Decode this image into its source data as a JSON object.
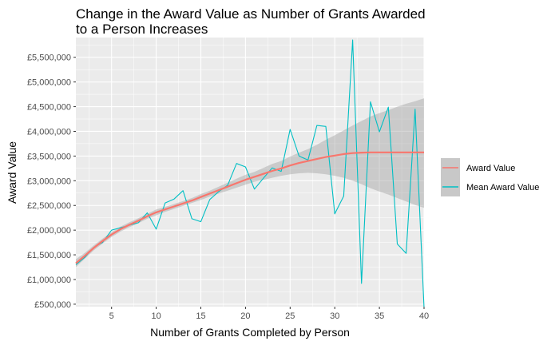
{
  "chart_data": {
    "type": "line",
    "title": "Change in the Award Value as Number of Grants Awarded to a Person Increases",
    "xlabel": "Number of Grants Completed by Person",
    "ylabel": "Award Value",
    "xlim": [
      1,
      40
    ],
    "ylim": [
      450000,
      5900000
    ],
    "x_ticks": [
      5,
      10,
      15,
      20,
      25,
      30,
      35,
      40
    ],
    "y_ticks": [
      500000,
      1000000,
      1500000,
      2000000,
      2500000,
      3000000,
      3500000,
      4000000,
      4500000,
      5000000,
      5500000
    ],
    "y_tick_labels": [
      "£500,000",
      "£1,000,000",
      "£1,500,000",
      "£2,000,000",
      "£2,500,000",
      "£3,000,000",
      "£3,500,000",
      "£4,000,000",
      "£4,500,000",
      "£5,000,000",
      "£5,500,000"
    ],
    "grid": true,
    "legend_position": "right",
    "colors": {
      "panel": "#ebebeb",
      "grid": "#ffffff",
      "band": "#c8c8c8",
      "smooth": "#f8766d",
      "mean": "#00bfc4"
    },
    "series": [
      {
        "name": "Mean Award Value",
        "x": [
          1,
          2,
          3,
          4,
          5,
          6,
          7,
          8,
          9,
          10,
          11,
          12,
          13,
          14,
          15,
          16,
          17,
          18,
          19,
          20,
          21,
          22,
          23,
          24,
          25,
          26,
          27,
          28,
          29,
          30,
          31,
          32,
          33,
          34,
          35,
          36,
          37,
          38,
          39,
          40
        ],
        "values": [
          1300000,
          1450000,
          1650000,
          1750000,
          2000000,
          2050000,
          2100000,
          2150000,
          2350000,
          2020000,
          2550000,
          2630000,
          2800000,
          2230000,
          2170000,
          2620000,
          2780000,
          2910000,
          3350000,
          3280000,
          2830000,
          3050000,
          3260000,
          3190000,
          4040000,
          3500000,
          3420000,
          4120000,
          4100000,
          2330000,
          2690000,
          5850000,
          920000,
          4600000,
          3990000,
          4490000,
          1720000,
          1530000,
          4450000,
          430000
        ]
      },
      {
        "name": "Award Value",
        "x": [
          1,
          2,
          3,
          4,
          5,
          6,
          7,
          8,
          9,
          10,
          11,
          12,
          13,
          14,
          15,
          16,
          17,
          18,
          19,
          20,
          21,
          22,
          23,
          24,
          25,
          26,
          27,
          28,
          29,
          30,
          31,
          32,
          33,
          34,
          35,
          36,
          37,
          38,
          39,
          40
        ],
        "values": [
          1330000,
          1480000,
          1640000,
          1780000,
          1910000,
          2020000,
          2110000,
          2190000,
          2280000,
          2360000,
          2420000,
          2480000,
          2540000,
          2600000,
          2670000,
          2740000,
          2810000,
          2880000,
          2950000,
          3020000,
          3080000,
          3140000,
          3200000,
          3250000,
          3310000,
          3360000,
          3400000,
          3440000,
          3480000,
          3510000,
          3540000,
          3560000,
          3570000,
          3575000,
          3575000,
          3575000,
          3575000,
          3575000,
          3575000,
          3575000
        ],
        "ci_lower": [
          1250000,
          1420000,
          1590000,
          1730000,
          1860000,
          1970000,
          2060000,
          2140000,
          2230000,
          2300000,
          2370000,
          2430000,
          2490000,
          2550000,
          2610000,
          2680000,
          2740000,
          2800000,
          2860000,
          2920000,
          2980000,
          3020000,
          3060000,
          3100000,
          3130000,
          3150000,
          3160000,
          3150000,
          3130000,
          3100000,
          3060000,
          3000000,
          2930000,
          2850000,
          2780000,
          2720000,
          2650000,
          2580000,
          2510000,
          2450000
        ],
        "ci_upper": [
          1410000,
          1540000,
          1690000,
          1830000,
          1960000,
          2070000,
          2160000,
          2240000,
          2330000,
          2420000,
          2470000,
          2530000,
          2590000,
          2650000,
          2730000,
          2800000,
          2880000,
          2960000,
          3040000,
          3120000,
          3180000,
          3260000,
          3340000,
          3400000,
          3490000,
          3570000,
          3640000,
          3730000,
          3830000,
          3920000,
          4020000,
          4120000,
          4210000,
          4300000,
          4370000,
          4430000,
          4500000,
          4560000,
          4610000,
          4670000
        ]
      }
    ]
  }
}
